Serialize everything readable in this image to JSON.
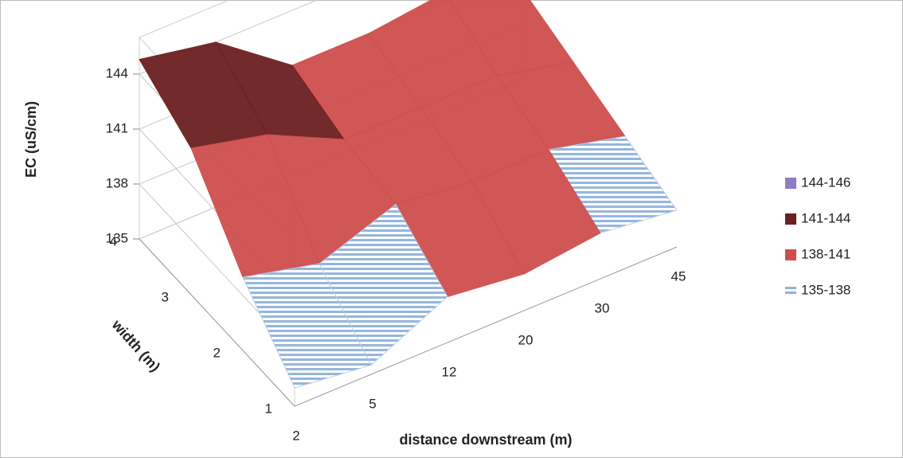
{
  "chart_data": {
    "type": "surface3d",
    "z_label": "EC (uS/cm)",
    "y_label": "width (m)",
    "x_label": "distance downstream (m)",
    "categories": [
      "2",
      "5",
      "12",
      "20",
      "30",
      "45"
    ],
    "y_categories": [
      "1",
      "2",
      "3",
      "4"
    ],
    "values": [
      [
        136,
        135.5,
        137.5,
        137,
        137.5,
        137
      ],
      [
        139,
        138,
        139.5,
        139,
        139,
        138
      ],
      [
        143,
        142,
        140,
        140,
        140,
        139
      ],
      [
        144.8,
        144,
        141,
        141,
        141.5,
        140
      ]
    ],
    "zlim": [
      135,
      146
    ],
    "zticks": [
      135,
      138,
      141,
      144
    ],
    "grid": true,
    "legend": "right",
    "bands": [
      {
        "label": "144-146",
        "min": 144,
        "max": 146,
        "color": "#8e7cc3",
        "hatch": false
      },
      {
        "label": "141-144",
        "min": 141,
        "max": 144,
        "color": "#6b1f1f",
        "hatch": false
      },
      {
        "label": "138-141",
        "min": 138,
        "max": 141,
        "color": "#cf4d4d",
        "hatch": false
      },
      {
        "label": "135-138",
        "min": 135,
        "max": 138,
        "color": "#8fb3dd",
        "hatch": true
      }
    ]
  }
}
